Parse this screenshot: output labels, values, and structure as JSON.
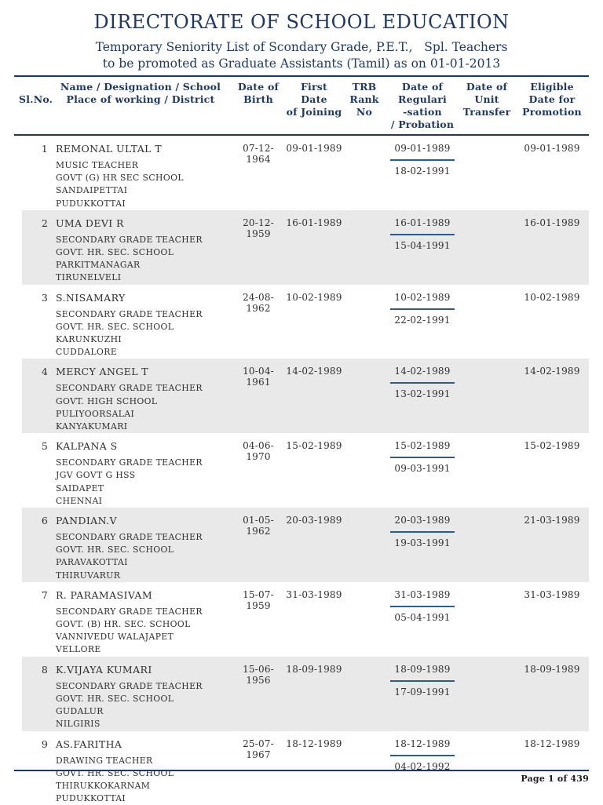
{
  "colors": {
    "heading_navy": "#1f3864",
    "row_stripe": "#e9e9e9",
    "rule_navy": "#1f3864",
    "reg_underline": "#2e5a8e"
  },
  "header": {
    "title": "DIRECTORATE OF SCHOOL EDUCATION",
    "subtitle": "Temporary Seniority List of Scondary Grade, P.E.T.,   Spl. Teachers\nto be promoted as Graduate Assistants (Tamil) as on 01-01-2013"
  },
  "table": {
    "columns": [
      {
        "key": "slno",
        "label": "Sl.No."
      },
      {
        "key": "name",
        "label": "Name / Designation / School\nPlace of working / District"
      },
      {
        "key": "dob",
        "label": "Date of\nBirth"
      },
      {
        "key": "joining",
        "label": "First Date\nof Joining"
      },
      {
        "key": "trb",
        "label": "TRB\nRank No"
      },
      {
        "key": "regularisation",
        "label": "Date of\nRegulari\n-sation\n/ Probation"
      },
      {
        "key": "unit_transfer",
        "label": "Date of\nUnit\nTransfer"
      },
      {
        "key": "eligible",
        "label": "Eligible\nDate for\nPromotion"
      }
    ],
    "rows": [
      {
        "slno": "1",
        "name": "REMONAL ULTAL T",
        "designation": "MUSIC TEACHER",
        "school": "GOVT (G) HR SEC SCHOOL",
        "place": "SANDAIPETTAI",
        "district": "PUDUKKOTTAI",
        "dob": "07-12-1964",
        "first_joining": "09-01-1989",
        "trb_rank": "",
        "regularisation": "09-01-1989",
        "probation": "18-02-1991",
        "unit_transfer": "",
        "eligible": "09-01-1989"
      },
      {
        "slno": "2",
        "name": "UMA DEVI R",
        "designation": "SECONDARY GRADE TEACHER",
        "school": "GOVT. HR. SEC. SCHOOL",
        "place": "PARKITMANAGAR",
        "district": "TIRUNELVELI",
        "dob": "20-12-1959",
        "first_joining": "16-01-1989",
        "trb_rank": "",
        "regularisation": "16-01-1989",
        "probation": "15-04-1991",
        "unit_transfer": "",
        "eligible": "16-01-1989"
      },
      {
        "slno": "3",
        "name": "S.NISAMARY",
        "designation": "SECONDARY GRADE TEACHER",
        "school": "GOVT. HR. SEC. SCHOOL",
        "place": "KARUNKUZHI",
        "district": "CUDDALORE",
        "dob": "24-08-1962",
        "first_joining": "10-02-1989",
        "trb_rank": "",
        "regularisation": "10-02-1989",
        "probation": "22-02-1991",
        "unit_transfer": "",
        "eligible": "10-02-1989"
      },
      {
        "slno": "4",
        "name": "MERCY ANGEL T",
        "designation": "SECONDARY GRADE TEACHER",
        "school": "GOVT. HIGH SCHOOL",
        "place": "PULIYOORSALAI",
        "district": "KANYAKUMARI",
        "dob": "10-04-1961",
        "first_joining": "14-02-1989",
        "trb_rank": "",
        "regularisation": "14-02-1989",
        "probation": "13-02-1991",
        "unit_transfer": "",
        "eligible": "14-02-1989"
      },
      {
        "slno": "5",
        "name": "KALPANA S",
        "designation": "SECONDARY GRADE TEACHER",
        "school": "JGV GOVT G HSS",
        "place": "SAIDAPET",
        "district": "CHENNAI",
        "dob": "04-06-1970",
        "first_joining": "15-02-1989",
        "trb_rank": "",
        "regularisation": "15-02-1989",
        "probation": "09-03-1991",
        "unit_transfer": "",
        "eligible": "15-02-1989"
      },
      {
        "slno": "6",
        "name": "PANDIAN.V",
        "designation": "SECONDARY GRADE TEACHER",
        "school": "GOVT. HR. SEC. SCHOOL",
        "place": "PARAVAKOTTAI",
        "district": "THIRUVARUR",
        "dob": "01-05-1962",
        "first_joining": "20-03-1989",
        "trb_rank": "",
        "regularisation": "20-03-1989",
        "probation": "19-03-1991",
        "unit_transfer": "",
        "eligible": "21-03-1989"
      },
      {
        "slno": "7",
        "name": "R. PARAMASIVAM",
        "designation": "SECONDARY GRADE TEACHER",
        "school": "GOVT. (B) HR. SEC. SCHOOL",
        "place": "VANNIVEDU WALAJAPET",
        "district": "VELLORE",
        "dob": "15-07-1959",
        "first_joining": "31-03-1989",
        "trb_rank": "",
        "regularisation": "31-03-1989",
        "probation": "05-04-1991",
        "unit_transfer": "",
        "eligible": "31-03-1989"
      },
      {
        "slno": "8",
        "name": "K.VIJAYA KUMARI",
        "designation": "SECONDARY GRADE TEACHER",
        "school": "GOVT. HR. SEC. SCHOOL",
        "place": "GUDALUR",
        "district": "NILGIRIS",
        "dob": "15-06-1956",
        "first_joining": "18-09-1989",
        "trb_rank": "",
        "regularisation": "18-09-1989",
        "probation": "17-09-1991",
        "unit_transfer": "",
        "eligible": "18-09-1989"
      },
      {
        "slno": "9",
        "name": "AS.FARITHA",
        "designation": "DRAWING TEACHER",
        "school": "GOVT. HR. SEC. SCHOOL",
        "place": "THIRUKKOKARNAM",
        "district": "PUDUKKOTTAI",
        "dob": "25-07-1967",
        "first_joining": "18-12-1989",
        "trb_rank": "",
        "regularisation": "18-12-1989",
        "probation": "04-02-1992",
        "unit_transfer": "",
        "eligible": "18-12-1989"
      }
    ]
  },
  "footer": {
    "page_label": "Page 1 of 439"
  }
}
